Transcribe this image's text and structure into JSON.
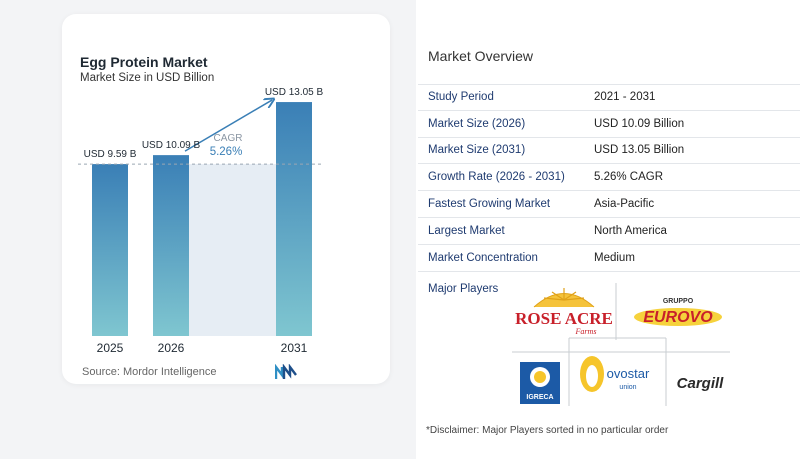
{
  "chart_data": {
    "type": "bar",
    "title": "Egg Protein Market",
    "subtitle": "Market Size in USD Billion",
    "categories": [
      "2025",
      "2026",
      "2031"
    ],
    "values": [
      9.59,
      10.09,
      13.05
    ],
    "value_labels": [
      "USD 9.59 B",
      "USD 10.09 B",
      "USD 13.05 B"
    ],
    "cagr_label": "CAGR",
    "cagr_value": "5.26%",
    "ylim": [
      0,
      13.5
    ],
    "grid": false,
    "colors": {
      "bar_top": "#3a7fb6",
      "bar_bottom": "#7fc6d0",
      "band": "#e6edf4",
      "arrow": "#3a7fb6",
      "dashed": "#9aa6b2"
    }
  },
  "source": "Source: Mordor Intelligence",
  "overview": {
    "title": "Market Overview",
    "rows": [
      {
        "label": "Study Period",
        "value": "2021 - 2031"
      },
      {
        "label": "Market Size (2026)",
        "value": "USD 10.09 Billion"
      },
      {
        "label": "Market Size (2031)",
        "value": "USD 13.05 Billion"
      },
      {
        "label": "Growth Rate (2026 - 2031)",
        "value": "5.26% CAGR"
      },
      {
        "label": "Fastest Growing Market",
        "value": "Asia-Pacific"
      },
      {
        "label": "Largest Market",
        "value": "North America"
      },
      {
        "label": "Market Concentration",
        "value": "Medium"
      }
    ]
  },
  "players": {
    "title": "Major Players",
    "logos": {
      "rose_acre_main": "ROSE ACRE",
      "rose_acre_sub": "Farms",
      "gruppo": "GRUPPO",
      "eurovo": "EUROVO",
      "igreca": "IGRECA",
      "ovostar": "ovostar",
      "ovostar_sub": "union",
      "cargill": "Cargill"
    }
  },
  "disclaimer": "*Disclaimer: Major Players sorted in no particular order"
}
